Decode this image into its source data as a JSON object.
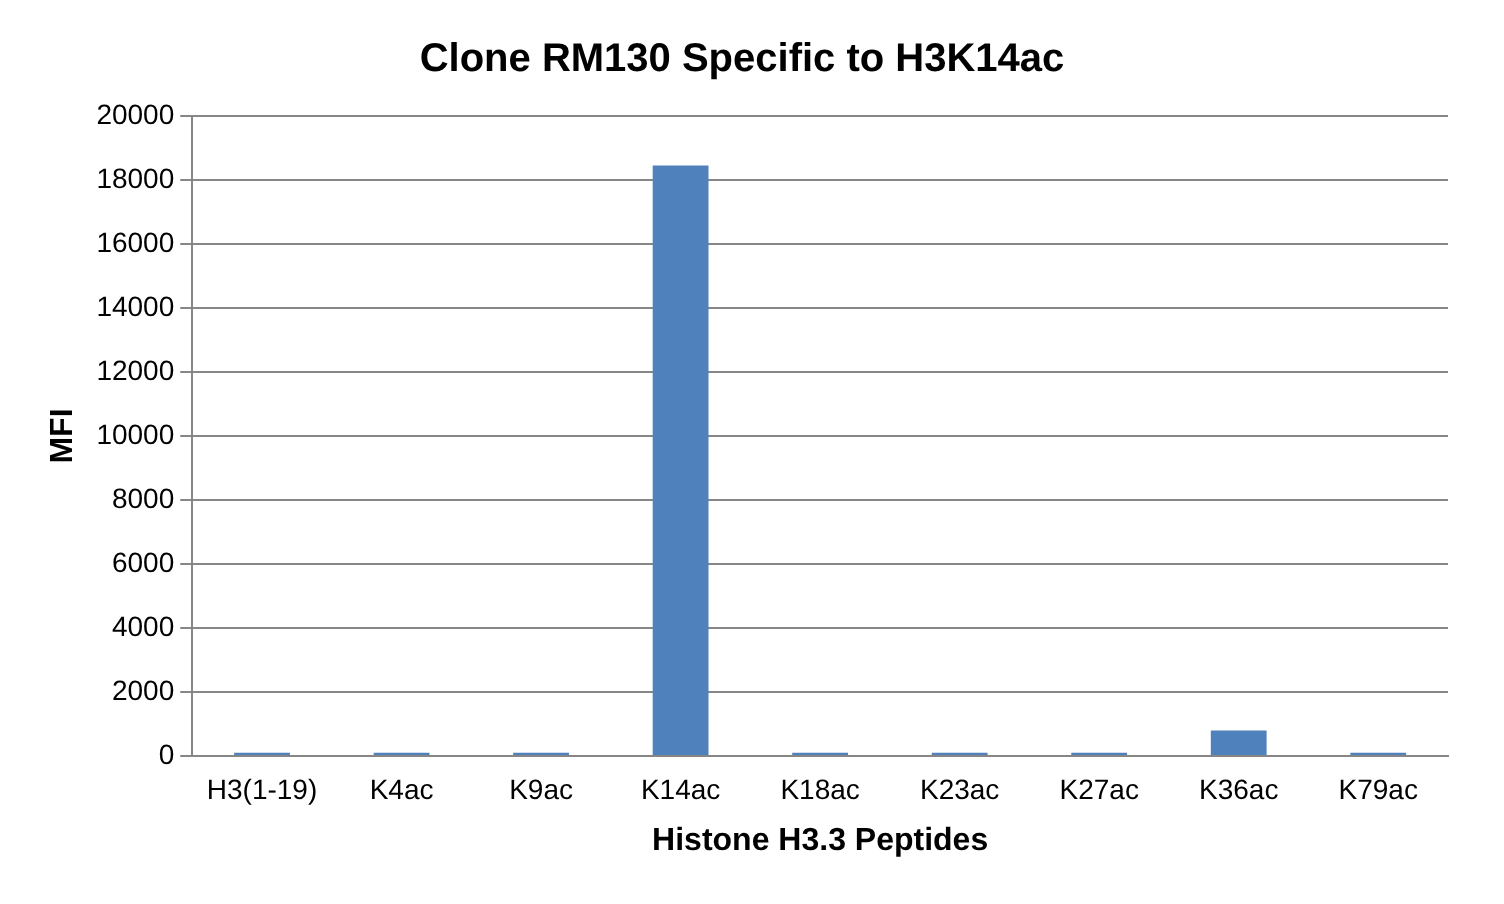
{
  "chart_data": {
    "type": "bar",
    "title": "Clone RM130 Specific to H3K14ac",
    "xlabel": "Histone H3.3 Peptides",
    "ylabel": "MFI",
    "categories": [
      "H3(1-19)",
      "K4ac",
      "K9ac",
      "K14ac",
      "K18ac",
      "K23ac",
      "K27ac",
      "K36ac",
      "K79ac"
    ],
    "values": [
      100,
      100,
      100,
      18450,
      100,
      100,
      100,
      800,
      100
    ],
    "color": "#4f81bd",
    "ylim": [
      0,
      20000
    ],
    "yticks": [
      0,
      2000,
      4000,
      6000,
      8000,
      10000,
      12000,
      14000,
      16000,
      18000,
      20000
    ],
    "grid": "y",
    "legend": false
  }
}
